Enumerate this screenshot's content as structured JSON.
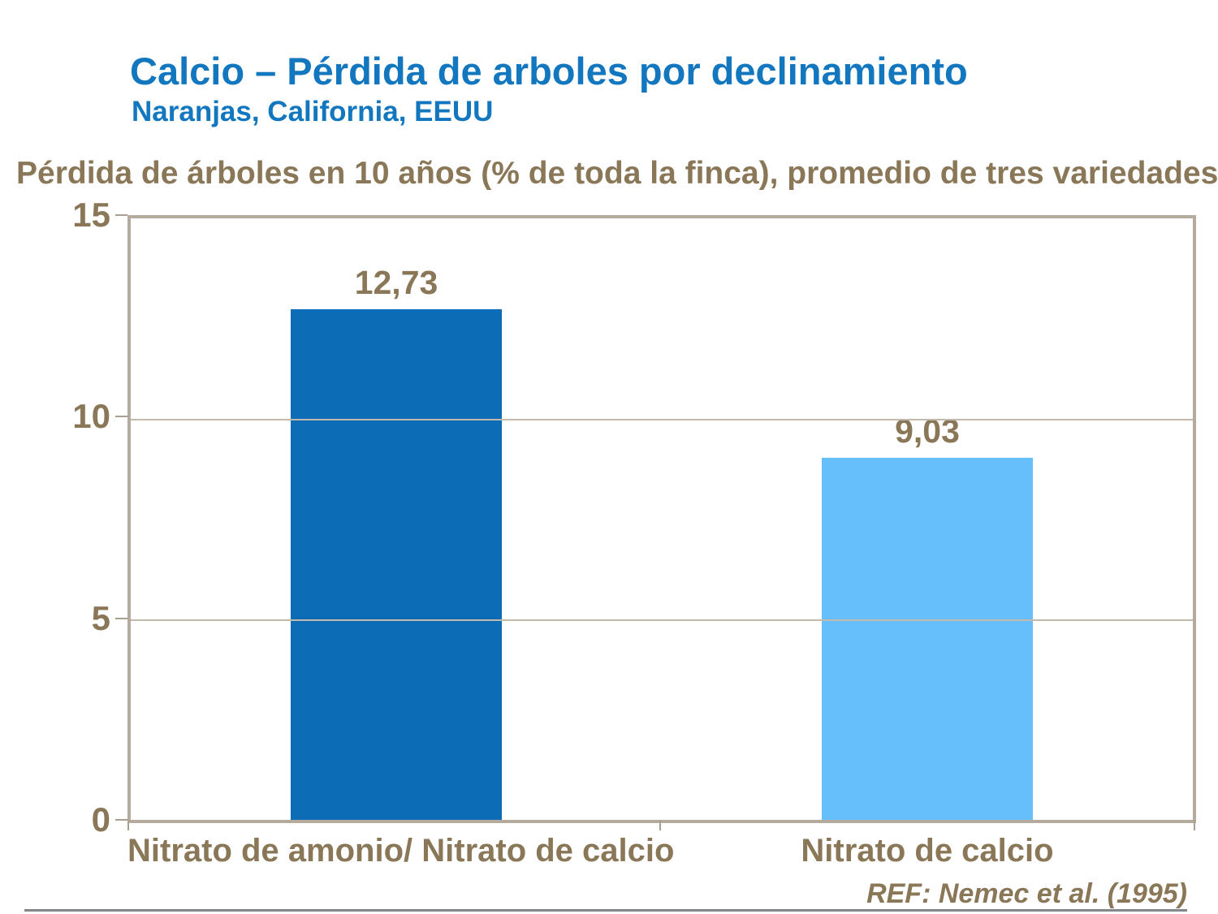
{
  "slide": {
    "title": "Calcio – Pérdida de arboles por declinamiento",
    "subtitle": "Naranjas, California, EEUU",
    "axis_caption": "Pérdida de árboles en 10 años (% de toda la finca), promedio de tres variedades",
    "reference": "REF: Nemec et al. (1995)",
    "colors": {
      "title_blue": "#1277BE",
      "text_brown": "#8A7758",
      "frame_tan": "#B4AB9E",
      "gridline_tan": "#C2B9AC",
      "bar_dark_blue": "#0D6CB6",
      "bar_light_blue": "#66BFFA",
      "bottom_rule_gray": "#81878D"
    }
  },
  "chart_data": {
    "type": "bar",
    "title": "Calcio – Pérdida de arboles por declinamiento",
    "subtitle": "Naranjas, California, EEUU",
    "axis_caption": "Pérdida de árboles en 10 años (% de toda la finca), promedio de tres variedades",
    "categories": [
      "Nitrato de amonio/ Nitrato de calcio",
      "Nitrato de calcio"
    ],
    "values": [
      12.73,
      9.03
    ],
    "value_labels": [
      "12,73",
      "9,03"
    ],
    "bar_colors": [
      "#0D6CB6",
      "#66BFFA"
    ],
    "xlabel": "",
    "ylabel": "",
    "ylim": [
      0,
      15
    ],
    "yticks": [
      0,
      5,
      10,
      15
    ],
    "ytick_labels_top_to_bottom": [
      "15",
      "10",
      "5",
      "0"
    ],
    "grid": true,
    "legend": false,
    "reference": "REF: Nemec et al. (1995)"
  }
}
